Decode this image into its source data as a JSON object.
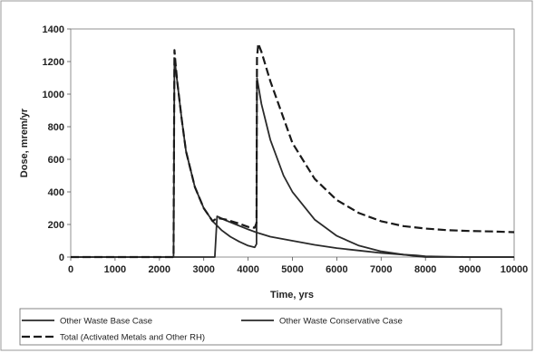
{
  "chart_data": {
    "type": "line",
    "title": "",
    "xlabel": "Time, yrs",
    "ylabel": "Dose, mrem/yr",
    "xlim": [
      0,
      10000
    ],
    "ylim": [
      0,
      1400
    ],
    "xticks": [
      0,
      1000,
      2000,
      3000,
      4000,
      5000,
      6000,
      7000,
      8000,
      9000,
      10000
    ],
    "yticks": [
      0,
      200,
      400,
      600,
      800,
      1000,
      1200,
      1400
    ],
    "x_tick_labels": [
      "0",
      "1000",
      "2000",
      "3000",
      "4000",
      "5000",
      "6000",
      "7000",
      "8000",
      "9000",
      "10000"
    ],
    "y_tick_labels": [
      "0",
      "200",
      "400",
      "600",
      "800",
      "1000",
      "1200",
      "1400"
    ],
    "grid": false,
    "legend_position": "bottom",
    "series": [
      {
        "name": "Other Waste Base Case",
        "style": "solid",
        "x": [
          0,
          3250,
          3300,
          3500,
          4000,
          4200,
          4500,
          5000,
          5500,
          6000,
          6500,
          7000,
          7500,
          7800,
          8000,
          8500,
          9000,
          10000
        ],
        "y": [
          0,
          0,
          250,
          225,
          170,
          150,
          125,
          100,
          75,
          55,
          40,
          25,
          15,
          10,
          5,
          2,
          0,
          0
        ]
      },
      {
        "name": "Other Waste Conservative Case",
        "style": "solid",
        "x": [
          0,
          2320,
          2330,
          2340,
          2400,
          2500,
          2600,
          2800,
          3000,
          3200,
          3400,
          3600,
          3800,
          4000,
          4150,
          4190,
          4200,
          4300,
          4500,
          4800,
          5000,
          5500,
          6000,
          6500,
          7000,
          7500,
          7800,
          8000,
          9000,
          10000
        ],
        "y": [
          0,
          0,
          600,
          1220,
          1080,
          850,
          650,
          430,
          300,
          220,
          165,
          125,
          95,
          70,
          60,
          80,
          1100,
          940,
          720,
          500,
          400,
          230,
          130,
          70,
          35,
          15,
          5,
          0,
          0,
          0
        ]
      },
      {
        "name": "Total (Activated Metals and Other RH)",
        "style": "dashed",
        "x": [
          0,
          2320,
          2330,
          2340,
          2360,
          2400,
          2500,
          2600,
          2800,
          3000,
          3200,
          3300,
          3500,
          3800,
          4000,
          4150,
          4190,
          4200,
          4230,
          4300,
          4500,
          5000,
          5500,
          6000,
          6500,
          7000,
          7500,
          8000,
          8500,
          9000,
          9500,
          10000
        ],
        "y": [
          0,
          0,
          700,
          1270,
          1200,
          1080,
          850,
          650,
          430,
          300,
          220,
          240,
          230,
          205,
          185,
          180,
          210,
          1220,
          1310,
          1260,
          1080,
          700,
          480,
          350,
          270,
          220,
          190,
          175,
          165,
          160,
          157,
          153
        ]
      }
    ]
  }
}
